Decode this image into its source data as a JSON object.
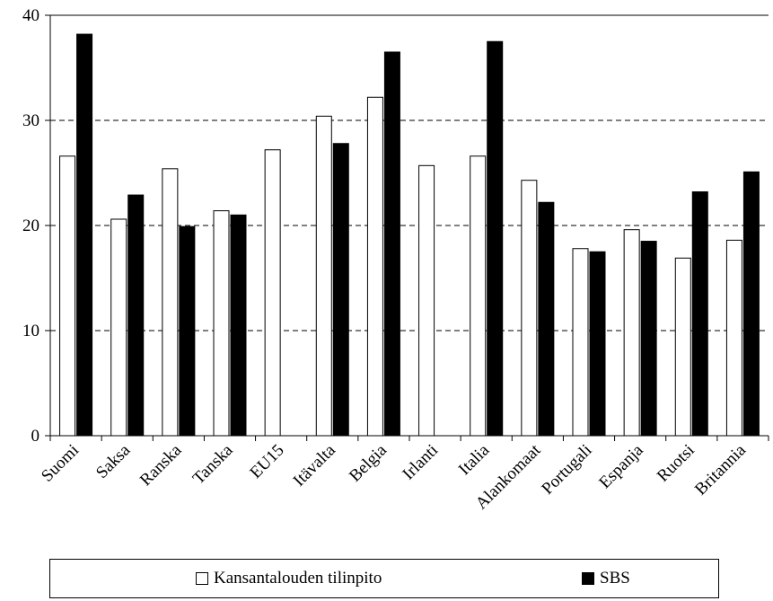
{
  "chart_data": {
    "type": "bar",
    "categories": [
      "Suomi",
      "Saksa",
      "Ranska",
      "Tanska",
      "EU15",
      "Itävalta",
      "Belgia",
      "Irlanti",
      "Italia",
      "Alankomaat",
      "Portugali",
      "Espanja",
      "Ruotsi",
      "Britannia"
    ],
    "series": [
      {
        "name": "Kansantalouden tilinpito",
        "color": "#ffffff",
        "values": [
          26.6,
          20.6,
          25.4,
          21.4,
          27.2,
          30.4,
          32.2,
          25.7,
          26.6,
          24.3,
          17.8,
          19.6,
          16.9,
          18.6
        ]
      },
      {
        "name": "SBS",
        "color": "#000000",
        "values": [
          38.2,
          22.9,
          19.9,
          21.0,
          null,
          27.8,
          36.5,
          null,
          37.5,
          22.2,
          17.5,
          18.5,
          23.2,
          25.1
        ]
      }
    ],
    "ylim": [
      0,
      40
    ],
    "yticks": [
      0,
      10,
      20,
      30,
      40
    ],
    "gridlines": [
      10,
      20,
      30
    ],
    "grid_style": "dashed",
    "legend_position": "bottom"
  }
}
